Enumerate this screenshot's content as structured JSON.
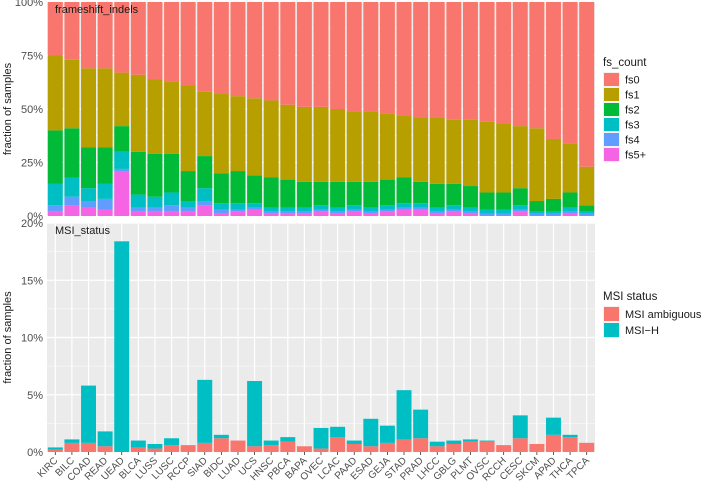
{
  "colors": {
    "fs0": "#F8766D",
    "fs1": "#B79F00",
    "fs2": "#00BA38",
    "fs3": "#00BFC4",
    "fs4": "#619CFF",
    "fs5+": "#F564E3",
    "msi_ambiguous": "#F8766D",
    "msi_h": "#00BFC4",
    "panel_bg": "#EBEBEB",
    "grid": "#FFFFFF"
  },
  "chart_data": [
    {
      "type": "bar",
      "stacked": true,
      "strip_label": "frameshift_indels",
      "ylabel": "fraction of samples",
      "ylim": [
        0,
        1
      ],
      "yticks": [
        "0%",
        "25%",
        "50%",
        "75%",
        "100%"
      ],
      "ytick_values": [
        0,
        0.25,
        0.5,
        0.75,
        1
      ],
      "legend_title": "fs_count",
      "legend_position": "right",
      "categories": [
        "KIRC",
        "BILC",
        "COAD",
        "READ",
        "UEAD",
        "BLCA",
        "LUSS",
        "LUSC",
        "RCCP",
        "SIAD",
        "BIDC",
        "LUAD",
        "UCS",
        "HNSC",
        "PBCA",
        "BAPA",
        "OVEC",
        "LCAC",
        "PAAD",
        "ESAD",
        "GEJA",
        "STAD",
        "PRAD",
        "LHCC",
        "GBLG",
        "PLMT",
        "OVSC",
        "RCCH",
        "CESC",
        "SKCM",
        "APAD",
        "THCA",
        "TPCA"
      ],
      "series": [
        {
          "name": "fs0",
          "values": [
            0.25,
            0.27,
            0.31,
            0.31,
            0.33,
            0.34,
            0.36,
            0.37,
            0.39,
            0.42,
            0.43,
            0.44,
            0.45,
            0.46,
            0.48,
            0.49,
            0.49,
            0.5,
            0.51,
            0.51,
            0.52,
            0.53,
            0.54,
            0.54,
            0.55,
            0.55,
            0.56,
            0.57,
            0.58,
            0.59,
            0.64,
            0.66,
            0.77
          ]
        },
        {
          "name": "fs1",
          "values": [
            0.35,
            0.32,
            0.37,
            0.37,
            0.25,
            0.36,
            0.35,
            0.34,
            0.4,
            0.3,
            0.37,
            0.35,
            0.36,
            0.36,
            0.35,
            0.35,
            0.35,
            0.34,
            0.33,
            0.33,
            0.31,
            0.29,
            0.3,
            0.31,
            0.3,
            0.31,
            0.33,
            0.32,
            0.29,
            0.34,
            0.28,
            0.23,
            0.18
          ]
        },
        {
          "name": "fs2",
          "values": [
            0.25,
            0.23,
            0.19,
            0.17,
            0.12,
            0.2,
            0.2,
            0.18,
            0.14,
            0.15,
            0.14,
            0.15,
            0.13,
            0.14,
            0.13,
            0.12,
            0.11,
            0.12,
            0.11,
            0.12,
            0.12,
            0.12,
            0.1,
            0.11,
            0.1,
            0.1,
            0.08,
            0.08,
            0.08,
            0.05,
            0.06,
            0.07,
            0.03
          ]
        },
        {
          "name": "fs3",
          "values": [
            0.1,
            0.09,
            0.06,
            0.07,
            0.08,
            0.06,
            0.05,
            0.06,
            0.03,
            0.06,
            0.03,
            0.03,
            0.02,
            0.02,
            0.02,
            0.02,
            0.02,
            0.02,
            0.02,
            0.02,
            0.02,
            0.02,
            0.02,
            0.02,
            0.02,
            0.02,
            0.02,
            0.02,
            0.02,
            0.01,
            0.01,
            0.02,
            0.01
          ]
        },
        {
          "name": "fs4",
          "values": [
            0.03,
            0.04,
            0.03,
            0.05,
            0.01,
            0.02,
            0.02,
            0.03,
            0.02,
            0.02,
            0.02,
            0.01,
            0.01,
            0.01,
            0.01,
            0.01,
            0.01,
            0.01,
            0.01,
            0.01,
            0.01,
            0.01,
            0.01,
            0.01,
            0.01,
            0.01,
            0.01,
            0.01,
            0.01,
            0.01,
            0.01,
            0.01,
            0.01
          ]
        },
        {
          "name": "fs5+",
          "values": [
            0.02,
            0.05,
            0.04,
            0.03,
            0.21,
            0.02,
            0.02,
            0.02,
            0.02,
            0.05,
            0.01,
            0.02,
            0.03,
            0.01,
            0.01,
            0.01,
            0.02,
            0.01,
            0.02,
            0.01,
            0.02,
            0.03,
            0.03,
            0.01,
            0.02,
            0.01,
            0.0,
            0.0,
            0.02,
            0.0,
            0.0,
            0.01,
            0.0
          ]
        }
      ]
    },
    {
      "type": "bar",
      "stacked": true,
      "strip_label": "MSI_status",
      "ylabel": "fraction of samples",
      "ylim": [
        0,
        0.2
      ],
      "yticks": [
        "0%",
        "5%",
        "10%",
        "15%",
        "20%"
      ],
      "ytick_values": [
        0,
        0.05,
        0.1,
        0.15,
        0.2
      ],
      "legend_title": "MSI status",
      "legend_position": "right",
      "categories": [
        "KIRC",
        "BILC",
        "COAD",
        "READ",
        "UEAD",
        "BLCA",
        "LUSS",
        "LUSC",
        "RCCP",
        "SIAD",
        "BIDC",
        "LUAD",
        "UCS",
        "HNSC",
        "PBCA",
        "BAPA",
        "OVEC",
        "LCAC",
        "PAAD",
        "ESAD",
        "GEJA",
        "STAD",
        "PRAD",
        "LHCC",
        "GBLG",
        "PLMT",
        "OVSC",
        "RCCH",
        "CESC",
        "SKCM",
        "APAD",
        "THCA",
        "TPCA"
      ],
      "series": [
        {
          "name": "MSI−H",
          "values": [
            0.002,
            0.003,
            0.05,
            0.013,
            0.184,
            0.006,
            0.004,
            0.006,
            0.0,
            0.055,
            0.003,
            0.0,
            0.057,
            0.004,
            0.004,
            0.0,
            0.018,
            0.009,
            0.003,
            0.024,
            0.015,
            0.043,
            0.025,
            0.004,
            0.003,
            0.002,
            0.001,
            0.0,
            0.02,
            0.0,
            0.015,
            0.002,
            0.0
          ]
        },
        {
          "name": "MSI ambiguous",
          "values": [
            0.002,
            0.008,
            0.008,
            0.005,
            0.0,
            0.004,
            0.003,
            0.006,
            0.006,
            0.008,
            0.012,
            0.01,
            0.005,
            0.006,
            0.009,
            0.005,
            0.003,
            0.013,
            0.007,
            0.005,
            0.008,
            0.011,
            0.012,
            0.005,
            0.007,
            0.009,
            0.009,
            0.006,
            0.012,
            0.007,
            0.015,
            0.013,
            0.008
          ]
        }
      ]
    }
  ]
}
